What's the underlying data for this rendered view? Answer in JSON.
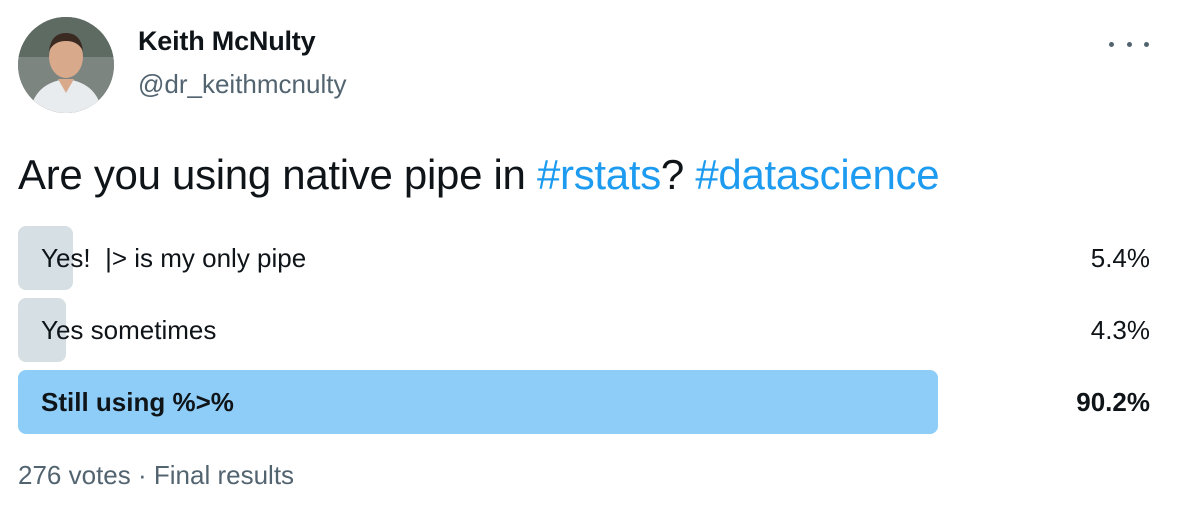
{
  "author": {
    "name": "Keith McNulty",
    "handle": "@dr_keithmcnulty",
    "avatar_icon": "profile-photo"
  },
  "menu_icon": "more-options-icon",
  "tweet": {
    "text_parts": [
      {
        "text": "Are you using native pipe in ",
        "type": "text"
      },
      {
        "text": "#rstats",
        "type": "hashtag"
      },
      {
        "text": "? ",
        "type": "text"
      },
      {
        "text": "#datascience",
        "type": "hashtag"
      }
    ]
  },
  "poll": {
    "options": [
      {
        "label": "Yes!  |> is my only pipe",
        "percent_text": "5.4%",
        "percent": 5.4,
        "winner": false
      },
      {
        "label": "Yes sometimes",
        "percent_text": "4.3%",
        "percent": 4.3,
        "winner": false
      },
      {
        "label": "Still using %>%",
        "percent_text": "90.2%",
        "percent": 90.2,
        "winner": true
      }
    ],
    "votes": "276 votes",
    "separator": "·",
    "status": "Final results"
  },
  "colors": {
    "hashtag": "#1d9bf0",
    "winner_bar": "#8ecdf8",
    "loser_bar": "#cfd9de",
    "secondary_text": "#536471"
  }
}
